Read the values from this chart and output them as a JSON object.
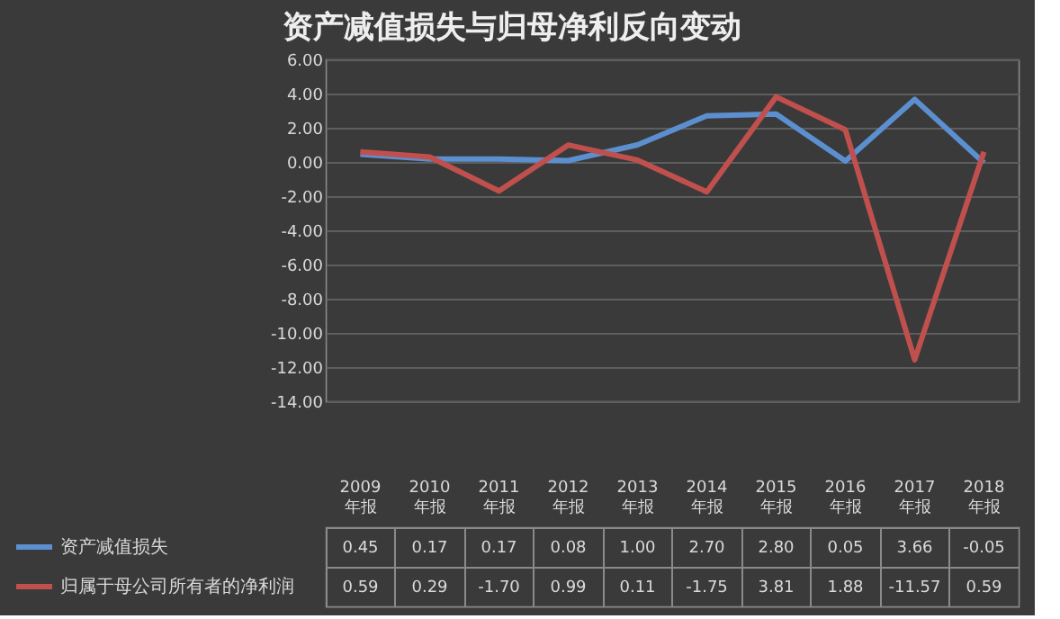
{
  "chart_data": {
    "type": "line",
    "title": "资产减值损失与归母净利反向变动",
    "categories": [
      "2009\n年报",
      "2010\n年报",
      "2011\n年报",
      "2012\n年报",
      "2013\n年报",
      "2014\n年报",
      "2015\n年报",
      "2016\n年报",
      "2017\n年报",
      "2018\n年报"
    ],
    "series": [
      {
        "name": "资产减值损失",
        "color": "#5b8fd0",
        "values": [
          0.45,
          0.17,
          0.17,
          0.08,
          1.0,
          2.7,
          2.8,
          0.05,
          3.66,
          -0.05
        ],
        "value_labels": [
          "0.45",
          "0.17",
          "0.17",
          "0.08",
          "1.00",
          "2.70",
          "2.80",
          "0.05",
          "3.66",
          "-0.05"
        ]
      },
      {
        "name": "归属于母公司所有者的净利润",
        "color": "#c0504d",
        "values": [
          0.59,
          0.29,
          -1.7,
          0.99,
          0.11,
          -1.75,
          3.81,
          1.88,
          -11.57,
          0.59
        ],
        "value_labels": [
          "0.59",
          "0.29",
          "-1.70",
          "0.99",
          "0.11",
          "-1.75",
          "3.81",
          "1.88",
          "-11.57",
          "0.59"
        ]
      }
    ],
    "ylim": [
      -14,
      6
    ],
    "yticks": [
      {
        "value": -14,
        "label": "-14.00"
      },
      {
        "value": -12,
        "label": "-12.00"
      },
      {
        "value": -10,
        "label": "-10.00"
      },
      {
        "value": -8,
        "label": "-8.00"
      },
      {
        "value": -6,
        "label": "-6.00"
      },
      {
        "value": -4,
        "label": "-4.00"
      },
      {
        "value": -2,
        "label": "-2.00"
      },
      {
        "value": 0,
        "label": "0.00"
      },
      {
        "value": 2,
        "label": "2.00"
      },
      {
        "value": 4,
        "label": "4.00"
      },
      {
        "value": 6,
        "label": "6.00"
      }
    ],
    "grid": "y",
    "legend": "bottom",
    "line_style": "solid",
    "marker": "none"
  }
}
